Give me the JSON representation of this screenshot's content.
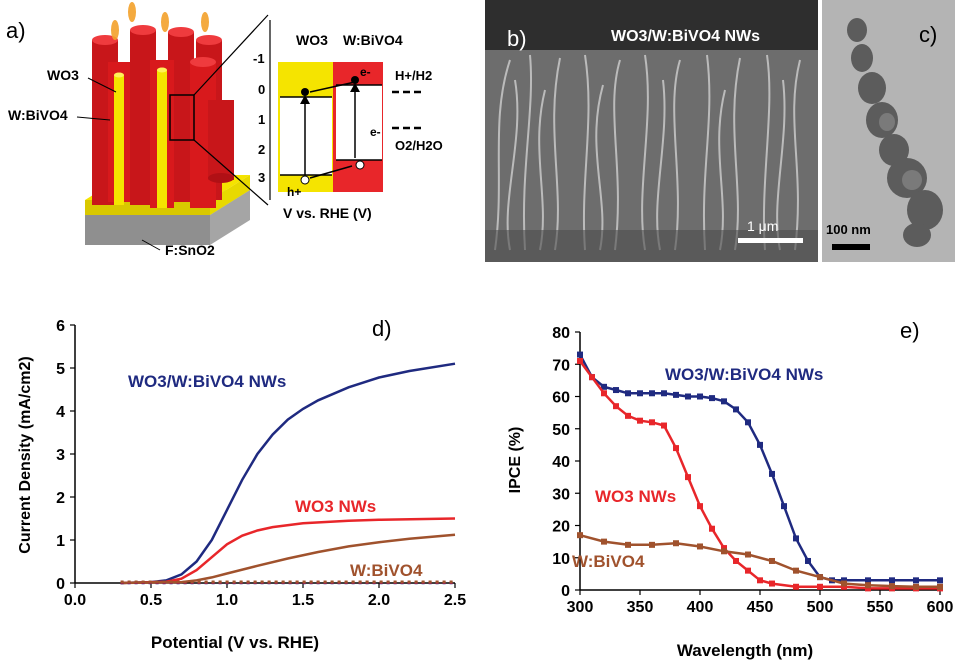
{
  "panel_labels": {
    "a": "a)",
    "b": "b)",
    "c": "c)",
    "d": "d)",
    "e": "e)"
  },
  "panel_a": {
    "wo3_label": "WO3",
    "wbivo4_label": "W:BiVO4",
    "fto_label": "F:SnO2",
    "band_wo3": "WO3",
    "band_wbivo4": "W:BiVO4",
    "h_plus_h2": "H+/H2",
    "o2_h2o": "O2/H2O",
    "electron": "e-",
    "hole": "h+",
    "axis_title": "V vs. RHE (V)",
    "axis_ticks": [
      "-1",
      "0",
      "1",
      "2",
      "3"
    ]
  },
  "panel_b": {
    "title": "WO3/W:BiVO4 NWs",
    "scale": "1 μm"
  },
  "panel_c": {
    "scale": "100 nm"
  },
  "colors": {
    "navy": "#1f2a80",
    "red": "#e8262a",
    "brown": "#a0522d",
    "yellow": "#f5e400",
    "cylinder_red": "#d8191c",
    "grey": "#9a9a9a"
  },
  "chart_data": [
    {
      "type": "line",
      "xlabel": "Potential (V vs. RHE)",
      "ylabel": "Current Density (mA/cm2)",
      "xlim": [
        0.0,
        2.5
      ],
      "ylim": [
        0,
        6
      ],
      "xticks": [
        "0.0",
        "0.5",
        "1.0",
        "1.5",
        "2.0",
        "2.5"
      ],
      "yticks": [
        "0",
        "1",
        "2",
        "3",
        "4",
        "5",
        "6"
      ],
      "series": [
        {
          "name": "WO3/W:BiVO4 NWs",
          "color": "#1f2a80",
          "x": [
            0.3,
            0.5,
            0.6,
            0.7,
            0.8,
            0.9,
            1.0,
            1.1,
            1.2,
            1.3,
            1.4,
            1.5,
            1.6,
            1.8,
            2.0,
            2.2,
            2.5
          ],
          "y": [
            0,
            0.02,
            0.06,
            0.2,
            0.5,
            1.0,
            1.7,
            2.4,
            3.0,
            3.45,
            3.8,
            4.05,
            4.25,
            4.55,
            4.78,
            4.93,
            5.1
          ]
        },
        {
          "name": "WO3 NWs",
          "color": "#e8262a",
          "x": [
            0.3,
            0.6,
            0.7,
            0.8,
            0.9,
            1.0,
            1.1,
            1.2,
            1.3,
            1.5,
            1.8,
            2.0,
            2.5
          ],
          "y": [
            0,
            0.03,
            0.1,
            0.3,
            0.6,
            0.9,
            1.1,
            1.22,
            1.3,
            1.39,
            1.45,
            1.47,
            1.5
          ]
        },
        {
          "name": "W:BiVO4",
          "color": "#a0522d",
          "x": [
            0.3,
            0.7,
            0.8,
            0.9,
            1.0,
            1.2,
            1.4,
            1.6,
            1.8,
            2.0,
            2.2,
            2.5
          ],
          "y": [
            0,
            0.02,
            0.06,
            0.13,
            0.22,
            0.4,
            0.57,
            0.72,
            0.85,
            0.95,
            1.03,
            1.12
          ]
        }
      ],
      "dark_current": {
        "x": [
          0.3,
          2.5
        ],
        "y": [
          0.0,
          0.0
        ]
      },
      "labels": {
        "navy": "WO3/W:BiVO4 NWs",
        "red": "WO3 NWs",
        "brown": "W:BiVO4"
      }
    },
    {
      "type": "line",
      "xlabel": "Wavelength (nm)",
      "ylabel": "IPCE (%)",
      "xlim": [
        300,
        600
      ],
      "ylim": [
        0,
        80
      ],
      "xticks": [
        "300",
        "350",
        "400",
        "450",
        "500",
        "550",
        "600"
      ],
      "yticks": [
        "0",
        "10",
        "20",
        "30",
        "40",
        "50",
        "60",
        "70",
        "80"
      ],
      "series": [
        {
          "name": "WO3/W:BiVO4 NWs",
          "color": "#1f2a80",
          "x": [
            300,
            310,
            320,
            330,
            340,
            350,
            360,
            370,
            380,
            390,
            400,
            410,
            420,
            430,
            440,
            450,
            460,
            470,
            480,
            490,
            500,
            510,
            520,
            540,
            560,
            580,
            600
          ],
          "y": [
            73,
            66,
            63,
            62,
            61,
            61,
            61,
            61,
            60.5,
            60,
            60,
            59.5,
            58.5,
            56,
            52,
            45,
            36,
            26,
            16,
            9,
            4,
            3,
            3,
            3,
            3,
            3,
            3
          ]
        },
        {
          "name": "WO3 NWs",
          "color": "#e8262a",
          "x": [
            300,
            310,
            320,
            330,
            340,
            350,
            360,
            370,
            380,
            390,
            400,
            410,
            420,
            430,
            440,
            450,
            460,
            480,
            500,
            520,
            540,
            560,
            580,
            600
          ],
          "y": [
            71,
            66,
            61,
            57,
            54,
            52.5,
            52,
            51,
            44,
            35,
            26,
            19,
            13,
            9,
            6,
            3,
            2,
            1,
            1,
            1,
            0.5,
            0.5,
            0.5,
            0.5
          ]
        },
        {
          "name": "W:BiVO4",
          "color": "#a0522d",
          "x": [
            300,
            320,
            340,
            360,
            380,
            400,
            420,
            440,
            460,
            480,
            500,
            520,
            540,
            560,
            580,
            600
          ],
          "y": [
            17,
            15,
            14,
            14,
            14.5,
            13.5,
            12,
            11,
            9,
            6,
            4,
            2,
            1.5,
            1.2,
            1,
            1
          ]
        }
      ],
      "labels": {
        "navy": "WO3/W:BiVO4 NWs",
        "red": "WO3 NWs",
        "brown": "W:BiVO4"
      }
    }
  ]
}
